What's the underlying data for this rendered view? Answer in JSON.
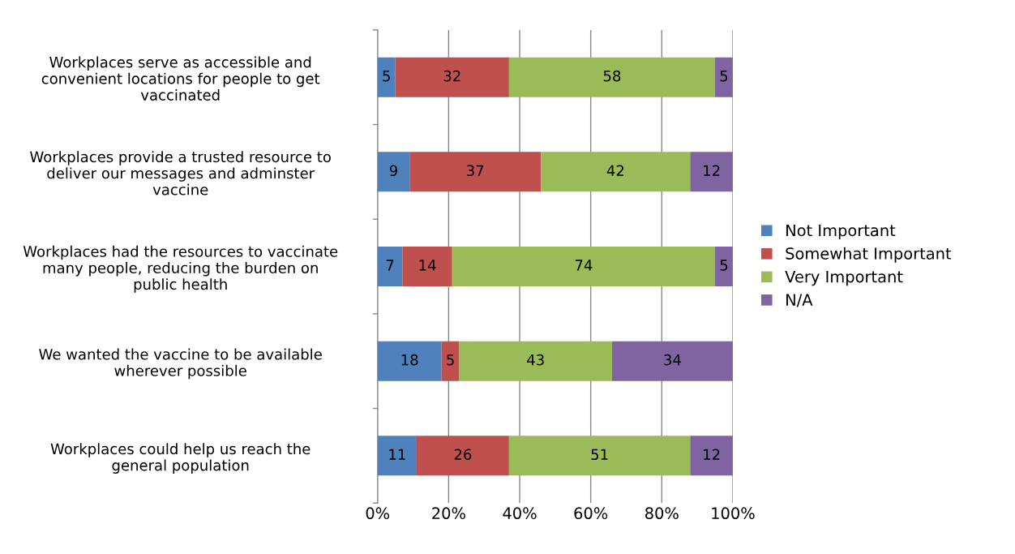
{
  "chart_data": {
    "type": "bar",
    "orientation": "horizontal",
    "stacked": true,
    "categories": [
      "Workplaces serve as accessible and\nconvenient locations for people to get\nvaccinated",
      "Workplaces provide a trusted resource to\ndeliver our messages and adminster\nvaccine",
      "Workplaces had the resources to vaccinate\nmany people, reducing the burden on\npublic health",
      "We wanted the vaccine to be available\nwherever possible",
      "Workplaces could help us reach the\ngeneral population"
    ],
    "series": [
      {
        "name": "Not Important",
        "color": "#4f81bd",
        "values": [
          5,
          9,
          7,
          18,
          11
        ]
      },
      {
        "name": "Somewhat Important",
        "color": "#c0504d",
        "values": [
          32,
          37,
          14,
          5,
          26
        ]
      },
      {
        "name": "Very Important",
        "color": "#9bbb59",
        "values": [
          58,
          42,
          74,
          43,
          51
        ]
      },
      {
        "name": "N/A",
        "color": "#8064a2",
        "values": [
          5,
          12,
          5,
          34,
          12
        ]
      }
    ],
    "xlim": [
      0,
      100
    ],
    "xticks": [
      {
        "value": 0,
        "label": "0%"
      },
      {
        "value": 20,
        "label": "20%"
      },
      {
        "value": 40,
        "label": "40%"
      },
      {
        "value": 60,
        "label": "60%"
      },
      {
        "value": 80,
        "label": "80%"
      },
      {
        "value": 100,
        "label": "100%"
      }
    ],
    "grid": "x",
    "legend": "right",
    "data_labels": true
  }
}
